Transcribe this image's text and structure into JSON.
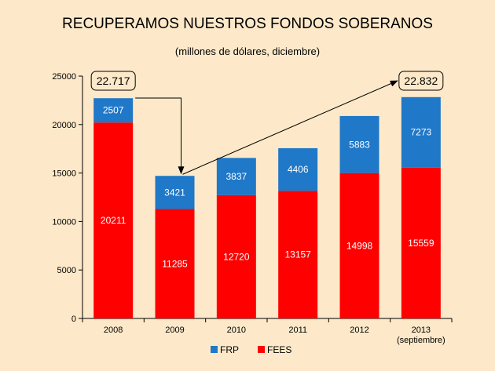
{
  "colors": {
    "background": "#fde9c9",
    "frp": "#1f78c8",
    "fees": "#ff0000",
    "axis": "#000000"
  },
  "chart_data": {
    "type": "bar",
    "stacked": true,
    "title": "RECUPERAMOS NUESTROS FONDOS SOBERANOS",
    "subtitle": "(millones de dólares, diciembre)",
    "categories": [
      "2008",
      "2009",
      "2010",
      "2011",
      "2012",
      "2013"
    ],
    "category_sublabels": [
      "",
      "",
      "",
      "",
      "",
      "(septiembre)"
    ],
    "series": [
      {
        "name": "FEES",
        "values": [
          20211,
          11285,
          12720,
          13157,
          14998,
          15559
        ]
      },
      {
        "name": "FRP",
        "values": [
          2507,
          3421,
          3837,
          4406,
          5883,
          7273
        ]
      }
    ],
    "ylim": [
      0,
      25000
    ],
    "yticks": [
      0,
      5000,
      10000,
      15000,
      20000,
      25000
    ],
    "legend": [
      "FRP",
      "FEES"
    ],
    "legend_position": "bottom",
    "callouts": [
      {
        "text": "22.717",
        "category": "2008"
      },
      {
        "text": "22.832",
        "category": "2013"
      }
    ]
  }
}
